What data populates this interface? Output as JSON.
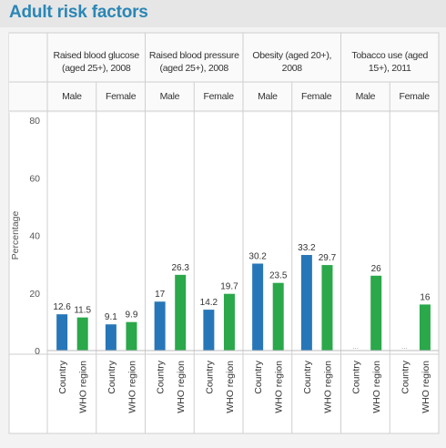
{
  "title": "Adult risk factors",
  "colors": {
    "country": "#2777b8",
    "who": "#2aa84a",
    "title": "#2a86b5"
  },
  "chart_data": {
    "type": "bar",
    "ylabel": "Percentage",
    "ylim": [
      0,
      80
    ],
    "yticks": [
      0,
      20,
      40,
      60,
      80
    ],
    "groups": [
      {
        "label": "Raised blood glucose (aged 25+), 2008",
        "subgroups": [
          {
            "sex": "Male",
            "country": 12.6,
            "who": 11.5,
            "country_label": "12.6",
            "who_label": "11.5"
          },
          {
            "sex": "Female",
            "country": 9.1,
            "who": 9.9,
            "country_label": "9.1",
            "who_label": "9.9"
          }
        ]
      },
      {
        "label": "Raised blood pressure (aged 25+), 2008",
        "subgroups": [
          {
            "sex": "Male",
            "country": 17,
            "who": 26.3,
            "country_label": "17",
            "who_label": "26.3"
          },
          {
            "sex": "Female",
            "country": 14.2,
            "who": 19.7,
            "country_label": "14.2",
            "who_label": "19.7"
          }
        ]
      },
      {
        "label": "Obesity (aged 20+), 2008",
        "subgroups": [
          {
            "sex": "Male",
            "country": 30.2,
            "who": 23.5,
            "country_label": "30.2",
            "who_label": "23.5"
          },
          {
            "sex": "Female",
            "country": 33.2,
            "who": 29.7,
            "country_label": "33.2",
            "who_label": "29.7"
          }
        ]
      },
      {
        "label": "Tobacco use (aged 15+), 2011",
        "subgroups": [
          {
            "sex": "Male",
            "country": 0,
            "who": 26,
            "country_label": "...",
            "who_label": "26"
          },
          {
            "sex": "Female",
            "country": 0,
            "who": 16,
            "country_label": "...",
            "who_label": "16"
          }
        ]
      }
    ],
    "series": [
      {
        "name": "Country"
      },
      {
        "name": "WHO region"
      }
    ]
  }
}
